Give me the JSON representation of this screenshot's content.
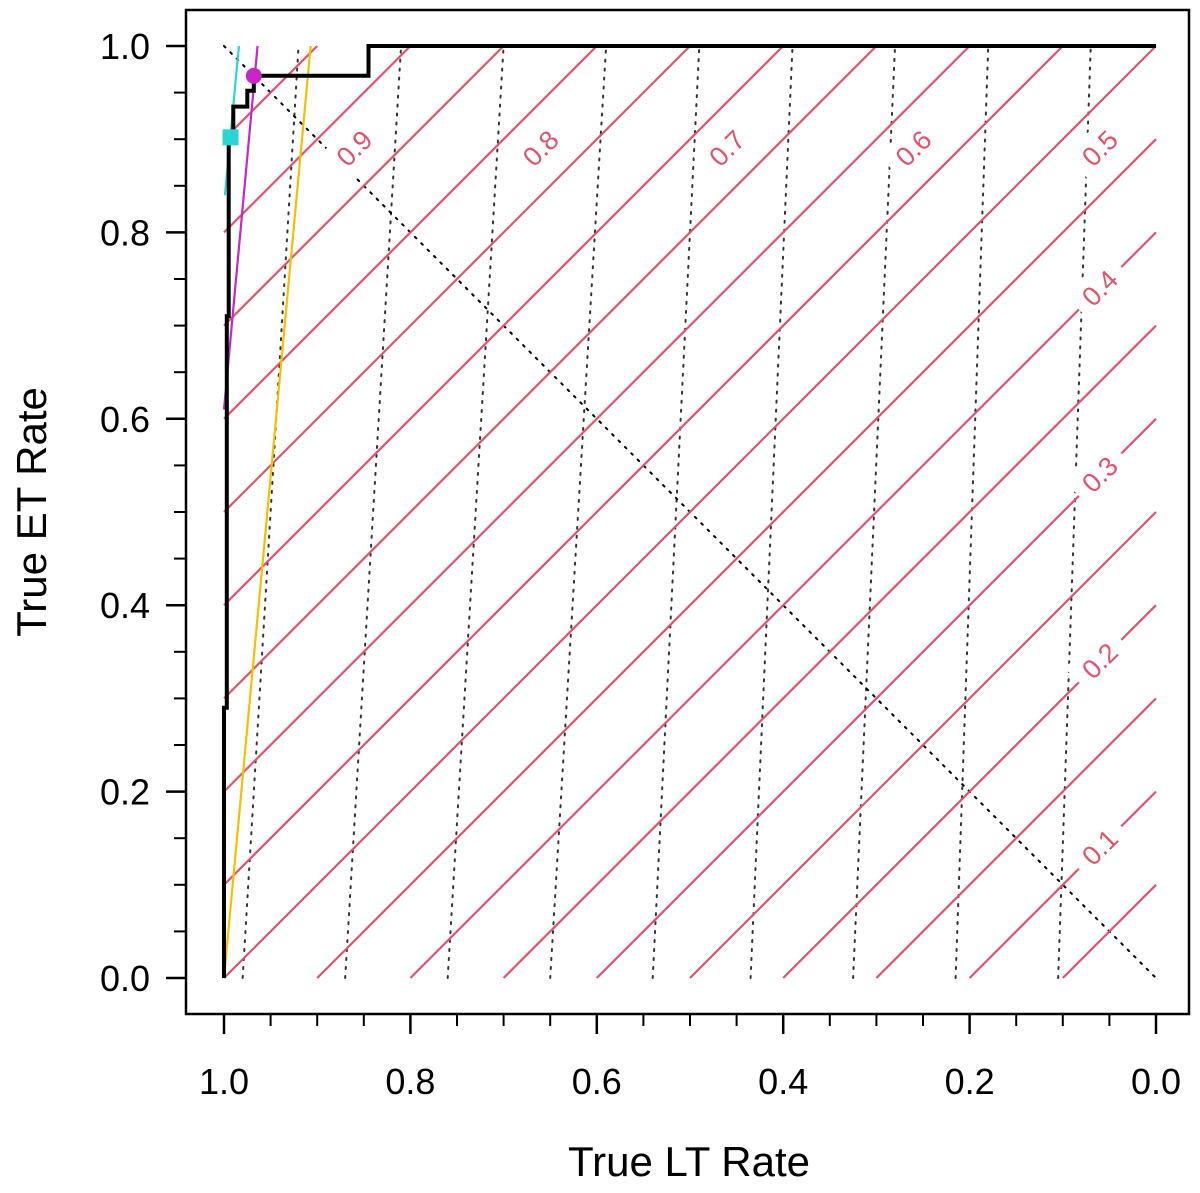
{
  "chart_data": {
    "type": "line",
    "title": "",
    "xlabel": "True LT Rate",
    "ylabel": "True ET Rate",
    "x_reversed": true,
    "xlim": [
      1.0,
      0.0
    ],
    "ylim": [
      0.0,
      1.0
    ],
    "x_ticks": [
      "1.0",
      "0.8",
      "0.6",
      "0.4",
      "0.2",
      "0.0"
    ],
    "y_ticks": [
      "0.0",
      "0.2",
      "0.4",
      "0.6",
      "0.8",
      "1.0"
    ],
    "x_tick_values": [
      1.0,
      0.8,
      0.6,
      0.4,
      0.2,
      0.0
    ],
    "y_tick_values": [
      0.0,
      0.2,
      0.4,
      0.6,
      0.8,
      1.0
    ],
    "minor_tick_step": 0.1,
    "grid": false,
    "colors": {
      "roc": "#000000",
      "iso": "#df536b",
      "cyan": "#2cd4d4",
      "magenta": "#c826c8",
      "gold": "#f5c000",
      "dotted": "#333333"
    },
    "roc_curve": {
      "name": "ROC",
      "points": [
        [
          1.0,
          0.0
        ],
        [
          1.0,
          0.29
        ],
        [
          0.997,
          0.29
        ],
        [
          0.997,
          0.71
        ],
        [
          0.995,
          0.71
        ],
        [
          0.995,
          0.9
        ],
        [
          0.99,
          0.9
        ],
        [
          0.99,
          0.935
        ],
        [
          0.975,
          0.935
        ],
        [
          0.975,
          0.952
        ],
        [
          0.968,
          0.952
        ],
        [
          0.968,
          0.968
        ],
        [
          0.845,
          0.968
        ],
        [
          0.845,
          1.0
        ],
        [
          0.0,
          1.0
        ]
      ]
    },
    "iso_lines": {
      "offsets": [
        -0.9,
        -0.8,
        -0.7,
        -0.6,
        -0.5,
        -0.4,
        -0.3,
        -0.2,
        -0.1,
        0.0,
        0.1,
        0.2,
        0.3,
        0.4,
        0.5,
        0.6,
        0.7,
        0.8,
        0.9
      ],
      "labels": [
        {
          "text": "0.9",
          "lt": 0.86,
          "et": 0.89
        },
        {
          "text": "0.8",
          "lt": 0.66,
          "et": 0.89
        },
        {
          "text": "0.7",
          "lt": 0.46,
          "et": 0.89
        },
        {
          "text": "0.6",
          "lt": 0.26,
          "et": 0.89
        },
        {
          "text": "0.5",
          "lt": 0.06,
          "et": 0.89
        },
        {
          "text": "0.4",
          "lt": 0.06,
          "et": 0.74
        },
        {
          "text": "0.3",
          "lt": 0.06,
          "et": 0.54
        },
        {
          "text": "0.2",
          "lt": 0.06,
          "et": 0.34
        },
        {
          "text": "0.1",
          "lt": 0.06,
          "et": 0.14
        }
      ]
    },
    "dotted_lines": [
      {
        "bottom": 0.98,
        "top": 0.92
      },
      {
        "bottom": 0.87,
        "top": 0.81
      },
      {
        "bottom": 0.76,
        "top": 0.7
      },
      {
        "bottom": 0.65,
        "top": 0.59
      },
      {
        "bottom": 0.54,
        "top": 0.49
      },
      {
        "bottom": 0.435,
        "top": 0.39
      },
      {
        "bottom": 0.325,
        "top": 0.28
      },
      {
        "bottom": 0.215,
        "top": 0.18
      },
      {
        "bottom": 0.105,
        "top": 0.07
      }
    ],
    "tangent_lines": [
      {
        "name": "cyan",
        "from": [
          0.999,
          0.84
        ],
        "to": [
          0.984,
          1.0
        ]
      },
      {
        "name": "magenta",
        "from": [
          1.0,
          0.61
        ],
        "to": [
          0.964,
          1.0
        ]
      },
      {
        "name": "gold",
        "from": [
          1.0,
          0.0
        ],
        "to": [
          0.907,
          1.0
        ]
      }
    ],
    "markers": [
      {
        "name": "cyan-square",
        "lt": 0.993,
        "et": 0.902,
        "shape": "square"
      },
      {
        "name": "magenta-circle",
        "lt": 0.968,
        "et": 0.968,
        "shape": "circle"
      }
    ]
  }
}
